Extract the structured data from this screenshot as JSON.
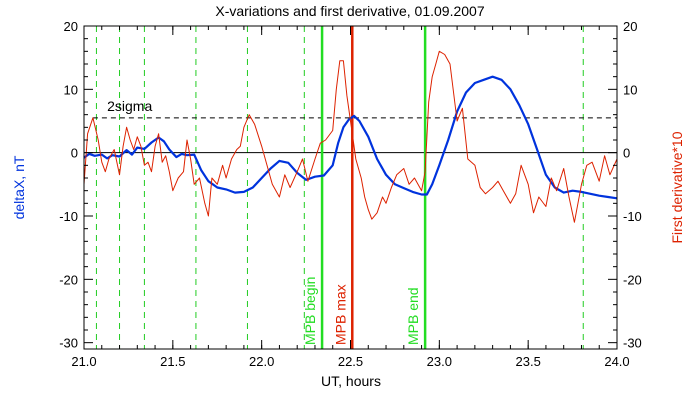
{
  "chart_data": {
    "type": "line",
    "title": "X-variations and first derivative, 01.09.2007",
    "xlabel": "UT, hours",
    "ylabel_left": "deltaX, nT",
    "ylabel_right": "First derivative*10",
    "xlim": [
      21.0,
      24.0
    ],
    "ylim": [
      -31,
      20
    ],
    "x_ticks": [
      21.0,
      21.5,
      22.0,
      22.5,
      23.0,
      23.5,
      24.0
    ],
    "x_tick_labels": [
      "21.0",
      "21.5",
      "22.0",
      "22.5",
      "23.0",
      "23.5",
      "24.0"
    ],
    "y_ticks": [
      20,
      10,
      0,
      -10,
      -20,
      -30
    ],
    "y_tick_labels_left": [
      "20",
      "10",
      "0",
      "-10",
      "-20",
      "-30"
    ],
    "y_tick_labels_right": [
      "20",
      "10",
      "0",
      "-10",
      "-20",
      "-30"
    ],
    "grid": false,
    "colors": {
      "deltaX": "#0033dd",
      "derivative": "#dd2200",
      "mpb_begin_end": "#22dd22",
      "mpb_max": "#dd2200",
      "dashed_green": "#22cc22",
      "threshold": "#000000",
      "zero_line": "#000000"
    },
    "series": [
      {
        "key": "deltaX",
        "axis": "left",
        "x": [
          21.0,
          21.03,
          21.06,
          21.1,
          21.13,
          21.16,
          21.2,
          21.24,
          21.27,
          21.3,
          21.34,
          21.38,
          21.42,
          21.45,
          21.48,
          21.52,
          21.55,
          21.58,
          21.62,
          21.66,
          21.7,
          21.75,
          21.8,
          21.85,
          21.9,
          21.95,
          22.0,
          22.05,
          22.1,
          22.15,
          22.2,
          22.25,
          22.3,
          22.35,
          22.4,
          22.43,
          22.46,
          22.49,
          22.52,
          22.55,
          22.6,
          22.65,
          22.7,
          22.75,
          22.8,
          22.85,
          22.9,
          22.93,
          22.96,
          23.0,
          23.05,
          23.1,
          23.15,
          23.2,
          23.25,
          23.3,
          23.35,
          23.4,
          23.45,
          23.5,
          23.55,
          23.6,
          23.65,
          23.7,
          23.75,
          23.8,
          23.85,
          23.9,
          23.95,
          24.0
        ],
        "y": [
          -0.8,
          -0.2,
          -0.5,
          -0.3,
          -0.9,
          -0.4,
          -0.6,
          0.4,
          -0.3,
          0.8,
          0.6,
          1.6,
          2.4,
          1.8,
          0.5,
          -0.7,
          -0.2,
          -0.4,
          -0.3,
          -2.8,
          -4.5,
          -5.5,
          -5.8,
          -6.3,
          -6.2,
          -5.5,
          -4.0,
          -2.5,
          -1.3,
          -1.6,
          -3.2,
          -4.3,
          -3.8,
          -3.6,
          -2.0,
          1.5,
          4.0,
          5.2,
          5.8,
          5.0,
          2.5,
          -1.0,
          -3.5,
          -5.0,
          -5.6,
          -6.2,
          -6.6,
          -6.6,
          -5.0,
          -2.0,
          2.0,
          6.5,
          9.5,
          11.0,
          11.5,
          12.0,
          11.5,
          10.0,
          7.5,
          4.5,
          0.5,
          -3.5,
          -5.5,
          -6.3,
          -6.0,
          -6.2,
          -6.5,
          -6.8,
          -7.0,
          -7.2
        ]
      },
      {
        "key": "derivative",
        "axis": "right",
        "x": [
          21.0,
          21.02,
          21.05,
          21.08,
          21.1,
          21.12,
          21.14,
          21.17,
          21.2,
          21.22,
          21.24,
          21.26,
          21.28,
          21.3,
          21.32,
          21.34,
          21.36,
          21.38,
          21.4,
          21.42,
          21.44,
          21.46,
          21.48,
          21.5,
          21.53,
          21.56,
          21.58,
          21.6,
          21.62,
          21.65,
          21.68,
          21.7,
          21.72,
          21.75,
          21.78,
          21.8,
          21.83,
          21.86,
          21.88,
          21.9,
          21.93,
          21.96,
          22.0,
          22.03,
          22.06,
          22.1,
          22.13,
          22.16,
          22.2,
          22.23,
          22.26,
          22.3,
          22.33,
          22.36,
          22.4,
          22.42,
          22.44,
          22.46,
          22.48,
          22.5,
          22.51,
          22.53,
          22.56,
          22.58,
          22.6,
          22.62,
          22.65,
          22.68,
          22.7,
          22.73,
          22.76,
          22.8,
          22.83,
          22.86,
          22.9,
          22.92,
          22.94,
          22.96,
          22.98,
          23.0,
          23.03,
          23.06,
          23.1,
          23.13,
          23.16,
          23.2,
          23.23,
          23.26,
          23.3,
          23.33,
          23.36,
          23.4,
          23.43,
          23.46,
          23.5,
          23.53,
          23.56,
          23.6,
          23.63,
          23.66,
          23.7,
          23.73,
          23.76,
          23.8,
          23.83,
          23.86,
          23.9,
          23.93,
          23.96,
          24.0
        ],
        "y": [
          -5.0,
          3.0,
          5.5,
          2.0,
          -1.5,
          -3.0,
          -1.0,
          0.5,
          -3.5,
          1.0,
          4.0,
          2.0,
          0.5,
          2.5,
          1.0,
          -2.0,
          -1.5,
          -3.0,
          1.0,
          3.0,
          -1.5,
          -0.5,
          -3.0,
          -6.0,
          -4.0,
          -3.0,
          2.0,
          -1.0,
          -5.0,
          -4.0,
          -8.0,
          -10.0,
          -4.0,
          -5.0,
          -2.0,
          -4.0,
          -1.0,
          0.5,
          1.0,
          4.0,
          6.0,
          4.5,
          1.0,
          -2.0,
          -5.0,
          -7.0,
          -3.5,
          -5.5,
          -3.0,
          -1.0,
          -4.5,
          -1.0,
          1.5,
          2.0,
          3.5,
          10.0,
          14.5,
          14.5,
          9.0,
          5.0,
          3.0,
          -1.0,
          -4.0,
          -7.0,
          -9.0,
          -10.5,
          -9.5,
          -7.0,
          -8.0,
          -5.5,
          -3.5,
          -2.5,
          -5.0,
          -4.0,
          -6.0,
          -3.0,
          8.0,
          12.0,
          14.0,
          16.0,
          15.5,
          14.0,
          5.0,
          7.0,
          -1.0,
          -2.0,
          -5.5,
          -6.5,
          -5.5,
          -4.5,
          -6.0,
          -8.0,
          -6.5,
          -2.0,
          -5.0,
          -9.5,
          -7.0,
          -8.5,
          -4.0,
          -6.0,
          -2.5,
          -7.0,
          -11.0,
          -5.0,
          -2.0,
          -1.5,
          -4.5,
          -0.5,
          -3.5,
          -1.0
        ]
      }
    ],
    "threshold": {
      "value": 5.5,
      "label": "2sigma"
    },
    "zero_line": 0,
    "dashed_markers_x": [
      21.07,
      21.2,
      21.34,
      21.63,
      21.92,
      22.24,
      23.81
    ],
    "event_markers": [
      {
        "x": 22.34,
        "label": "MPB begin",
        "color_key": "mpb_begin_end"
      },
      {
        "x": 22.51,
        "label": "MPB max",
        "color_key": "mpb_max"
      },
      {
        "x": 22.92,
        "label": "MPB end",
        "color_key": "mpb_begin_end"
      }
    ]
  }
}
